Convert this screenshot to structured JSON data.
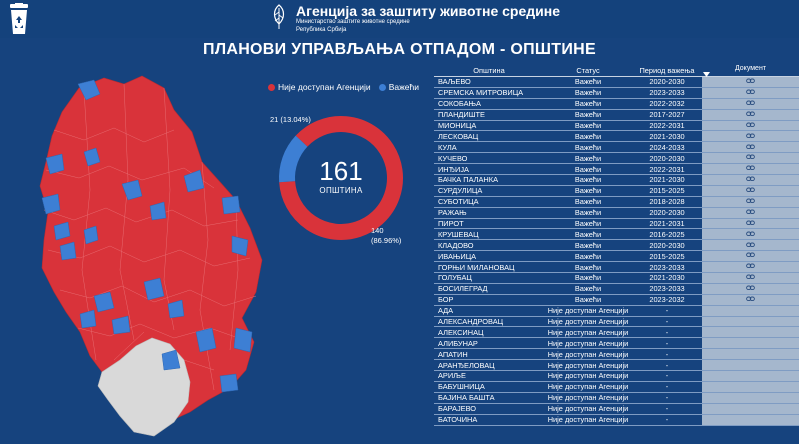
{
  "header": {
    "agency_name": "Агенција за заштиту животне средине",
    "ministry": "Министарство заштите животне средине",
    "republic": "Република Србија"
  },
  "page_title": "ПЛАНОВИ УПРАВЉАЊА ОТПАДОМ - ОПШТИНЕ",
  "colors": {
    "red": "#d9333a",
    "blue": "#3d7fd4",
    "gray": "#d9d9d9",
    "background": "#16437e"
  },
  "legend": {
    "not_available": "Није доступан Агенцији",
    "valid": "Важећи"
  },
  "chart_data": {
    "type": "pie",
    "total": "161",
    "total_label": "ОПШТИНА",
    "slices": [
      {
        "label": "Није доступан Агенцији",
        "value": 140,
        "text": "140",
        "pct_text": "(86.96%)"
      },
      {
        "label": "Важећи",
        "value": 21,
        "text": "21 (13.04%)"
      }
    ]
  },
  "table": {
    "headers": [
      "Општина",
      "Статус",
      "Период важења",
      "Документ"
    ],
    "rows": [
      [
        "ВАЉЕВО",
        "Важећи",
        "2020-2030"
      ],
      [
        "СРЕМСКА МИТРОВИЦА",
        "Важећи",
        "2023-2033"
      ],
      [
        "СОКОБАЊА",
        "Важећи",
        "2022-2032"
      ],
      [
        "ПЛАНДИШТЕ",
        "Важећи",
        "2017-2027"
      ],
      [
        "МИОНИЦА",
        "Важећи",
        "2022-2031"
      ],
      [
        "ЛЕСКОВАЦ",
        "Важећи",
        "2021-2030"
      ],
      [
        "КУЛА",
        "Важећи",
        "2024-2033"
      ],
      [
        "КУЧЕВО",
        "Важећи",
        "2020-2030"
      ],
      [
        "ИНЂИЈА",
        "Важећи",
        "2022-2031"
      ],
      [
        "БАЧКА ПАЛАНКА",
        "Важећи",
        "2021-2030"
      ],
      [
        "СУРДУЛИЦА",
        "Важећи",
        "2015-2025"
      ],
      [
        "СУБОТИЦА",
        "Важећи",
        "2018-2028"
      ],
      [
        "РАЖАЊ",
        "Важећи",
        "2020-2030"
      ],
      [
        "ПИРОТ",
        "Важећи",
        "2021-2031"
      ],
      [
        "КРУШЕВАЦ",
        "Важећи",
        "2016-2025"
      ],
      [
        "КЛАДОВО",
        "Важећи",
        "2020-2030"
      ],
      [
        "ИВАЊИЦА",
        "Важећи",
        "2015-2025"
      ],
      [
        "ГОРЊИ МИЛАНОВАЦ",
        "Важећи",
        "2023-2033"
      ],
      [
        "ГОЛУБАЦ",
        "Важећи",
        "2021-2030"
      ],
      [
        "БОСИЛЕГРАД",
        "Важећи",
        "2023-2033"
      ],
      [
        "БОР",
        "Важећи",
        "2023-2032"
      ],
      [
        "АДА",
        "Није доступан Агенцији",
        "-"
      ],
      [
        "АЛЕКСАНДРОВАЦ",
        "Није доступан Агенцији",
        "-"
      ],
      [
        "АЛЕКСИНАЦ",
        "Није доступан Агенцији",
        "-"
      ],
      [
        "АЛИБУНАР",
        "Није доступан Агенцији",
        "-"
      ],
      [
        "АПАТИН",
        "Није доступан Агенцији",
        "-"
      ],
      [
        "АРАНЂЕЛОВАЦ",
        "Није доступан Агенцији",
        "-"
      ],
      [
        "АРИЉЕ",
        "Није доступан Агенцији",
        "-"
      ],
      [
        "БАБУШНИЦА",
        "Није доступан Агенцији",
        "-"
      ],
      [
        "БАЈИНА БАШТА",
        "Није доступан Агенцији",
        "-"
      ],
      [
        "БАРАЈЕВО",
        "Није доступан Агенцији",
        "-"
      ],
      [
        "БАТОЧИНА",
        "Није доступан Агенцији",
        "-"
      ]
    ]
  }
}
